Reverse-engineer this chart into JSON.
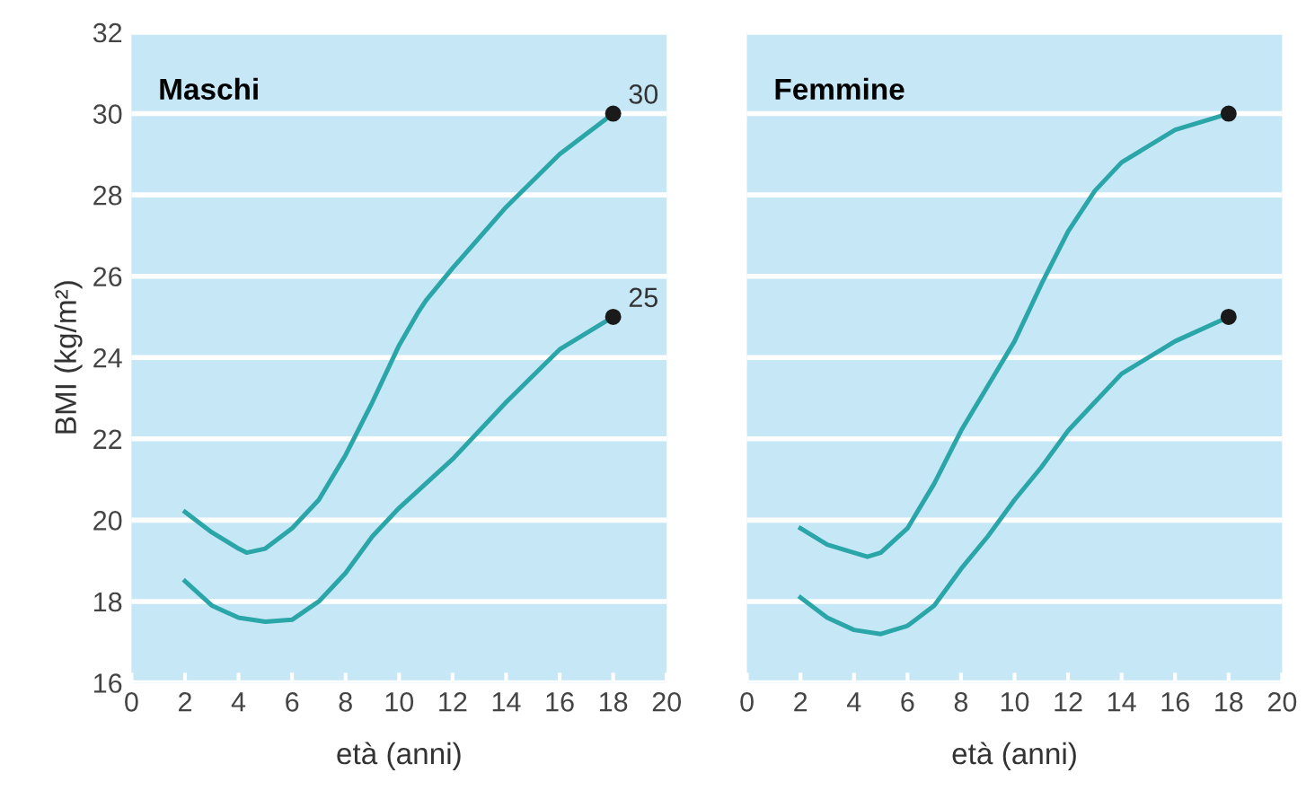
{
  "chart_data": [
    {
      "type": "line",
      "title": "Maschi",
      "xlabel": "età (anni)",
      "ylabel": "BMI (kg/m²)",
      "xlim": [
        0,
        20
      ],
      "xticks": [
        0,
        2,
        4,
        6,
        8,
        10,
        12,
        14,
        16,
        18,
        20
      ],
      "ylim": [
        16,
        32
      ],
      "yticks": [
        16,
        18,
        20,
        22,
        24,
        26,
        28,
        30,
        32
      ],
      "grid": "y",
      "line_style": "solid",
      "series": [
        {
          "color": "#2aa5a8",
          "x": [
            2,
            3,
            4,
            4.3,
            5,
            6,
            7,
            8,
            9,
            10,
            10.7,
            11,
            12,
            14,
            16,
            18
          ],
          "values": [
            20.2,
            19.7,
            19.3,
            19.2,
            19.3,
            19.8,
            20.5,
            21.6,
            22.9,
            24.3,
            25.1,
            25.4,
            26.2,
            27.7,
            29.0,
            30
          ]
        },
        {
          "color": "#2aa5a8",
          "x": [
            2,
            3,
            4,
            5,
            6,
            7,
            8,
            9,
            10,
            12,
            14,
            16,
            18
          ],
          "values": [
            18.5,
            17.9,
            17.6,
            17.5,
            17.55,
            18.0,
            18.7,
            19.6,
            20.3,
            21.5,
            22.9,
            24.2,
            25
          ]
        },
        {
          "type": "scatter",
          "marker": "circle",
          "color": "#1a1a1a",
          "x": [
            18,
            18
          ],
          "values": [
            30,
            25
          ]
        }
      ],
      "annotations": [
        {
          "text": "30",
          "x": 18,
          "y": 30
        },
        {
          "text": "25",
          "x": 18,
          "y": 25
        }
      ]
    },
    {
      "type": "line",
      "title": "Femmine",
      "xlabel": "età (anni)",
      "xlim": [
        0,
        20
      ],
      "xticks": [
        0,
        2,
        4,
        6,
        8,
        10,
        12,
        14,
        16,
        18,
        20
      ],
      "ylim": [
        16,
        32
      ],
      "yticks": [
        16,
        18,
        20,
        22,
        24,
        26,
        28,
        30,
        32
      ],
      "grid": "y",
      "line_style": "solid",
      "tick_labels": "x",
      "series": [
        {
          "color": "#2aa5a8",
          "x": [
            2,
            3,
            4,
            4.5,
            5,
            6,
            7,
            8,
            9,
            10,
            11,
            12,
            13,
            14,
            16,
            18
          ],
          "values": [
            19.8,
            19.4,
            19.2,
            19.1,
            19.2,
            19.8,
            20.9,
            22.2,
            23.3,
            24.4,
            25.8,
            27.1,
            28.1,
            28.8,
            29.6,
            30
          ]
        },
        {
          "color": "#2aa5a8",
          "x": [
            2,
            3,
            4,
            5,
            6,
            7,
            8,
            9,
            10,
            11,
            12,
            13,
            14,
            16,
            18
          ],
          "values": [
            18.1,
            17.6,
            17.3,
            17.2,
            17.4,
            17.9,
            18.8,
            19.6,
            20.5,
            21.3,
            22.2,
            22.9,
            23.6,
            24.4,
            25
          ]
        },
        {
          "type": "scatter",
          "marker": "circle",
          "color": "#1a1a1a",
          "x": [
            18,
            18
          ],
          "values": [
            30,
            25
          ]
        }
      ]
    }
  ]
}
